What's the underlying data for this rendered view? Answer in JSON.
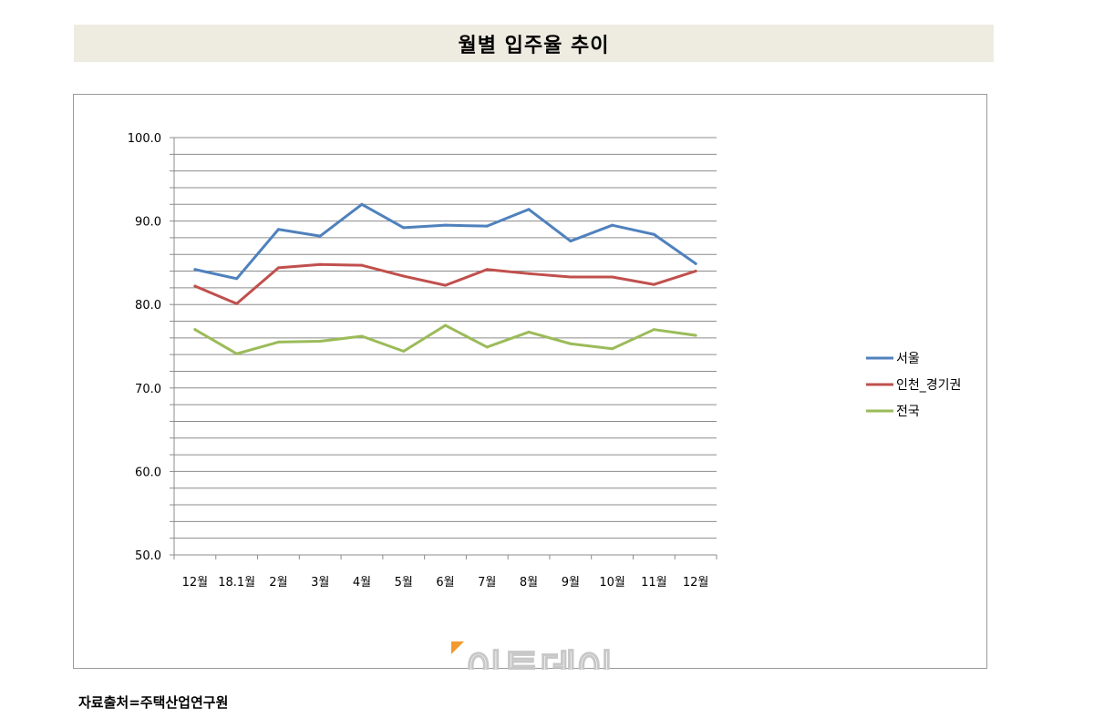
{
  "title": "월별 입주율 추이",
  "source": "자료출처=주택산업연구원",
  "watermark": "이투데이",
  "chart_data": {
    "type": "line",
    "title": "월별 입주율 추이",
    "categories": [
      "12월",
      "18.1월",
      "2월",
      "3월",
      "4월",
      "5월",
      "6월",
      "7월",
      "8월",
      "9월",
      "10월",
      "11월",
      "12월"
    ],
    "series": [
      {
        "name": "서울",
        "color": "#4f81bd",
        "values": [
          84.2,
          83.1,
          89.0,
          88.2,
          92.0,
          89.2,
          89.5,
          89.4,
          91.4,
          87.6,
          89.5,
          88.4,
          84.9
        ]
      },
      {
        "name": "인천_경기권",
        "color": "#c0504d",
        "values": [
          82.2,
          80.1,
          84.4,
          84.8,
          84.7,
          83.4,
          82.3,
          84.2,
          83.7,
          83.3,
          83.3,
          82.4,
          84.0
        ]
      },
      {
        "name": "전국",
        "color": "#9bbb59",
        "values": [
          77.0,
          74.1,
          75.5,
          75.6,
          76.2,
          74.4,
          77.5,
          74.9,
          76.7,
          75.3,
          74.7,
          77.0,
          76.3
        ]
      }
    ],
    "y_ticks": [
      "100.0",
      "90.0",
      "80.0",
      "70.0",
      "60.0",
      "50.0"
    ],
    "ylim": [
      50,
      100
    ],
    "grid": true,
    "legend_position": "right"
  }
}
